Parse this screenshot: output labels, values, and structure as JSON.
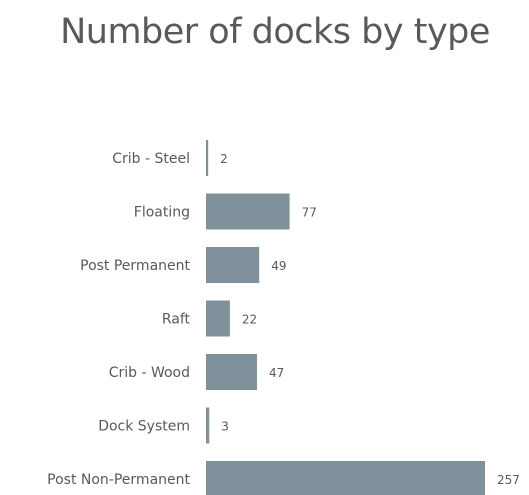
{
  "chart_data": {
    "type": "bar",
    "orientation": "horizontal",
    "title": "Number of docks by type",
    "categories": [
      "Crib - Steel",
      "Floating",
      "Post Permanent",
      "Raft",
      "Crib - Wood",
      "Dock System",
      "Post Non-Permanent"
    ],
    "values": [
      2,
      77,
      49,
      22,
      47,
      3,
      257
    ],
    "xlim": [
      0,
      257
    ],
    "grid": false,
    "legend": "none",
    "data_labels": true,
    "bar_color": "#7f929c"
  }
}
